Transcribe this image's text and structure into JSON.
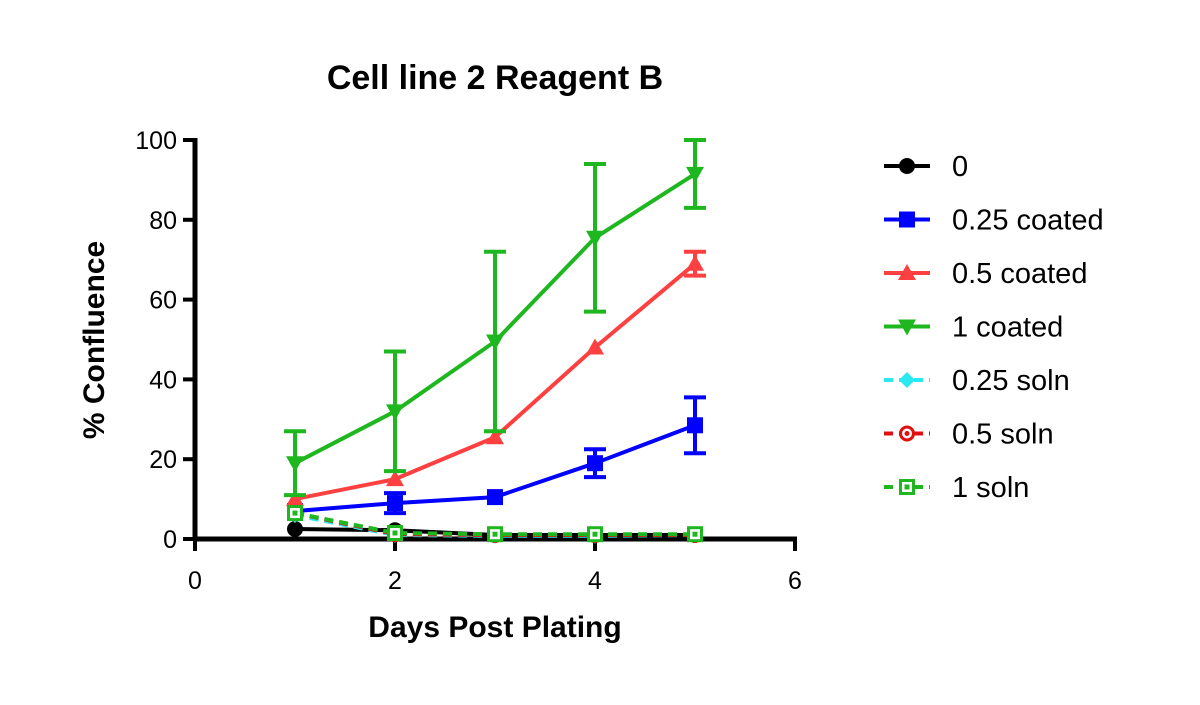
{
  "chart_data": {
    "type": "line",
    "title": "Cell line 2 Reagent B",
    "xlabel": "Days Post Plating",
    "ylabel": "% Confluence",
    "xlim": [
      0,
      6
    ],
    "ylim": [
      0,
      100
    ],
    "x_ticks": [
      0,
      2,
      4,
      6
    ],
    "y_ticks": [
      0,
      20,
      40,
      60,
      80,
      100
    ],
    "grid": false,
    "legend_position": "right",
    "x": [
      1,
      2,
      3,
      4,
      5
    ],
    "series": [
      {
        "name": "0",
        "color": "#000000",
        "marker": "circle",
        "dashed": false,
        "values": [
          2.5,
          2.2,
          1.0,
          1.0,
          1.0
        ],
        "error": [
          0,
          0,
          0,
          0,
          0
        ]
      },
      {
        "name": "0.25 coated",
        "color": "#0000FF",
        "marker": "square",
        "dashed": false,
        "values": [
          7,
          9,
          10.5,
          19,
          28.5
        ],
        "error": [
          0,
          2.5,
          0,
          3.5,
          7
        ]
      },
      {
        "name": "0.5 coated",
        "color": "#FF4040",
        "marker": "triangle-up",
        "dashed": false,
        "values": [
          10,
          15,
          25.5,
          48,
          69
        ],
        "error": [
          0,
          0,
          0,
          0,
          3
        ]
      },
      {
        "name": "1 coated",
        "color": "#1FB71F",
        "marker": "triangle-down",
        "dashed": false,
        "values": [
          19,
          32,
          49.5,
          75.5,
          91.5
        ],
        "error": [
          8,
          15,
          22.5,
          18.5,
          8.5
        ]
      },
      {
        "name": "0.25 soln",
        "color": "#2BE8F0",
        "marker": "diamond",
        "dashed": true,
        "values": [
          6,
          1.0,
          0.8,
          0.8,
          1.0
        ],
        "error": [
          0,
          0,
          0,
          0,
          0
        ]
      },
      {
        "name": "0.5 soln",
        "color": "#E01010",
        "marker": "circle-dot",
        "dashed": true,
        "values": [
          6.5,
          1.2,
          1.0,
          1.0,
          1.0
        ],
        "error": [
          0,
          0,
          0,
          0,
          0
        ]
      },
      {
        "name": "1 soln",
        "color": "#1FB71F",
        "marker": "square-dot",
        "dashed": true,
        "values": [
          6.5,
          1.5,
          1.2,
          1.2,
          1.2
        ],
        "error": [
          0,
          0,
          0,
          0,
          0
        ]
      }
    ]
  }
}
